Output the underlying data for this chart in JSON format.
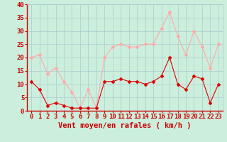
{
  "x": [
    0,
    1,
    2,
    3,
    4,
    5,
    6,
    7,
    8,
    9,
    10,
    11,
    12,
    13,
    14,
    15,
    16,
    17,
    18,
    19,
    20,
    21,
    22,
    23
  ],
  "wind_avg": [
    11,
    8,
    2,
    3,
    2,
    1,
    1,
    1,
    1,
    11,
    11,
    12,
    11,
    11,
    10,
    11,
    13,
    20,
    10,
    8,
    13,
    12,
    3,
    10
  ],
  "wind_gust": [
    20,
    21,
    14,
    16,
    11,
    7,
    1,
    8,
    1,
    20,
    24,
    25,
    24,
    24,
    25,
    25,
    31,
    37,
    28,
    21,
    30,
    24,
    16,
    25
  ],
  "avg_color": "#dd0000",
  "gust_color": "#ffaaaa",
  "bg_color": "#cceedd",
  "grid_color": "#aacccc",
  "xlabel": "Vent moyen/en rafales ( km/h )",
  "ylim": [
    0,
    40
  ],
  "yticks": [
    0,
    5,
    10,
    15,
    20,
    25,
    30,
    35,
    40
  ],
  "tick_fontsize": 6.5,
  "xlabel_fontsize": 7.5
}
